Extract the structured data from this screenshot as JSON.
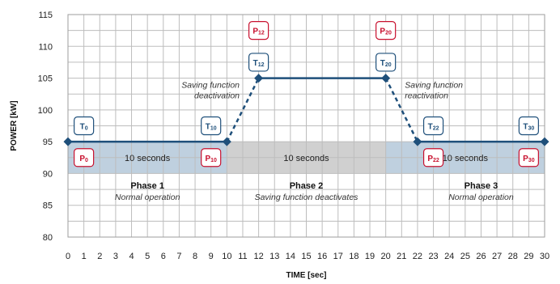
{
  "chart_data": {
    "type": "line",
    "xlabel": "TIME [sec]",
    "ylabel": "POWER [kW]",
    "xlim": [
      0,
      30
    ],
    "ylim": [
      80,
      115
    ],
    "x_ticks": [
      0,
      1,
      2,
      3,
      4,
      5,
      6,
      7,
      8,
      9,
      10,
      11,
      12,
      13,
      14,
      15,
      16,
      17,
      18,
      19,
      20,
      21,
      22,
      23,
      24,
      25,
      26,
      27,
      28,
      29,
      30
    ],
    "y_ticks": [
      80,
      85,
      90,
      95,
      100,
      105,
      110,
      115
    ],
    "grid": true,
    "series": [
      {
        "color": "#1e4f7a",
        "x": [
          0,
          10,
          12,
          20,
          22,
          30
        ],
        "y": [
          95,
          95,
          105,
          105,
          95,
          95
        ],
        "line_styles": [
          "solid",
          "dashed",
          "solid",
          "dashed",
          "solid"
        ]
      }
    ],
    "bands": [
      {
        "x_start": 0,
        "x_end": 10,
        "y_start": 90,
        "y_end": 95,
        "color": "#bfd0df",
        "label": "10 seconds"
      },
      {
        "x_start": 10,
        "x_end": 20,
        "y_start": 90,
        "y_end": 95,
        "color": "#d0d0d0",
        "label": "10 seconds"
      },
      {
        "x_start": 20,
        "x_end": 30,
        "y_start": 90,
        "y_end": 95,
        "color": "#bfd0df",
        "label": "10 seconds"
      }
    ],
    "phases": [
      {
        "x": 5,
        "y": 88,
        "title": "Phase 1",
        "subtitle": "Normal operation"
      },
      {
        "x": 15,
        "y": 88,
        "title": "Phase 2",
        "subtitle": "Saving function deactivates"
      },
      {
        "x": 26,
        "y": 88,
        "title": "Phase 3",
        "subtitle": "Normal operation"
      }
    ],
    "markers": [
      {
        "kind": "T",
        "main": "T",
        "sub": "0",
        "x": 1,
        "y": 97.5,
        "color": "#1e4f7a"
      },
      {
        "kind": "P",
        "main": "P",
        "sub": "0",
        "x": 1,
        "y": 92.5,
        "color": "#c8102e"
      },
      {
        "kind": "T",
        "main": "T",
        "sub": "10",
        "x": 9,
        "y": 97.5,
        "color": "#1e4f7a"
      },
      {
        "kind": "P",
        "main": "P",
        "sub": "10",
        "x": 9,
        "y": 92.5,
        "color": "#c8102e"
      },
      {
        "kind": "P",
        "main": "P",
        "sub": "12",
        "x": 12,
        "y": 112.5,
        "color": "#c8102e"
      },
      {
        "kind": "T",
        "main": "T",
        "sub": "12",
        "x": 12,
        "y": 107.5,
        "color": "#1e4f7a"
      },
      {
        "kind": "P",
        "main": "P",
        "sub": "20",
        "x": 20,
        "y": 112.5,
        "color": "#c8102e"
      },
      {
        "kind": "T",
        "main": "T",
        "sub": "20",
        "x": 20,
        "y": 107.5,
        "color": "#1e4f7a"
      },
      {
        "kind": "T",
        "main": "T",
        "sub": "22",
        "x": 23,
        "y": 97.5,
        "color": "#1e4f7a"
      },
      {
        "kind": "P",
        "main": "P",
        "sub": "22",
        "x": 23,
        "y": 92.5,
        "color": "#c8102e"
      },
      {
        "kind": "T",
        "main": "T",
        "sub": "30",
        "x": 29,
        "y": 97.5,
        "color": "#1e4f7a"
      },
      {
        "kind": "P",
        "main": "P",
        "sub": "30",
        "x": 29,
        "y": 92.5,
        "color": "#c8102e"
      }
    ],
    "annotations": [
      {
        "lines": [
          "Saving function",
          "deactivation"
        ],
        "x": 10.8,
        "y": 103.5,
        "anchor": "end"
      },
      {
        "lines": [
          "Saving function",
          "reactivation"
        ],
        "x": 21.2,
        "y": 103.5,
        "anchor": "start"
      }
    ]
  }
}
